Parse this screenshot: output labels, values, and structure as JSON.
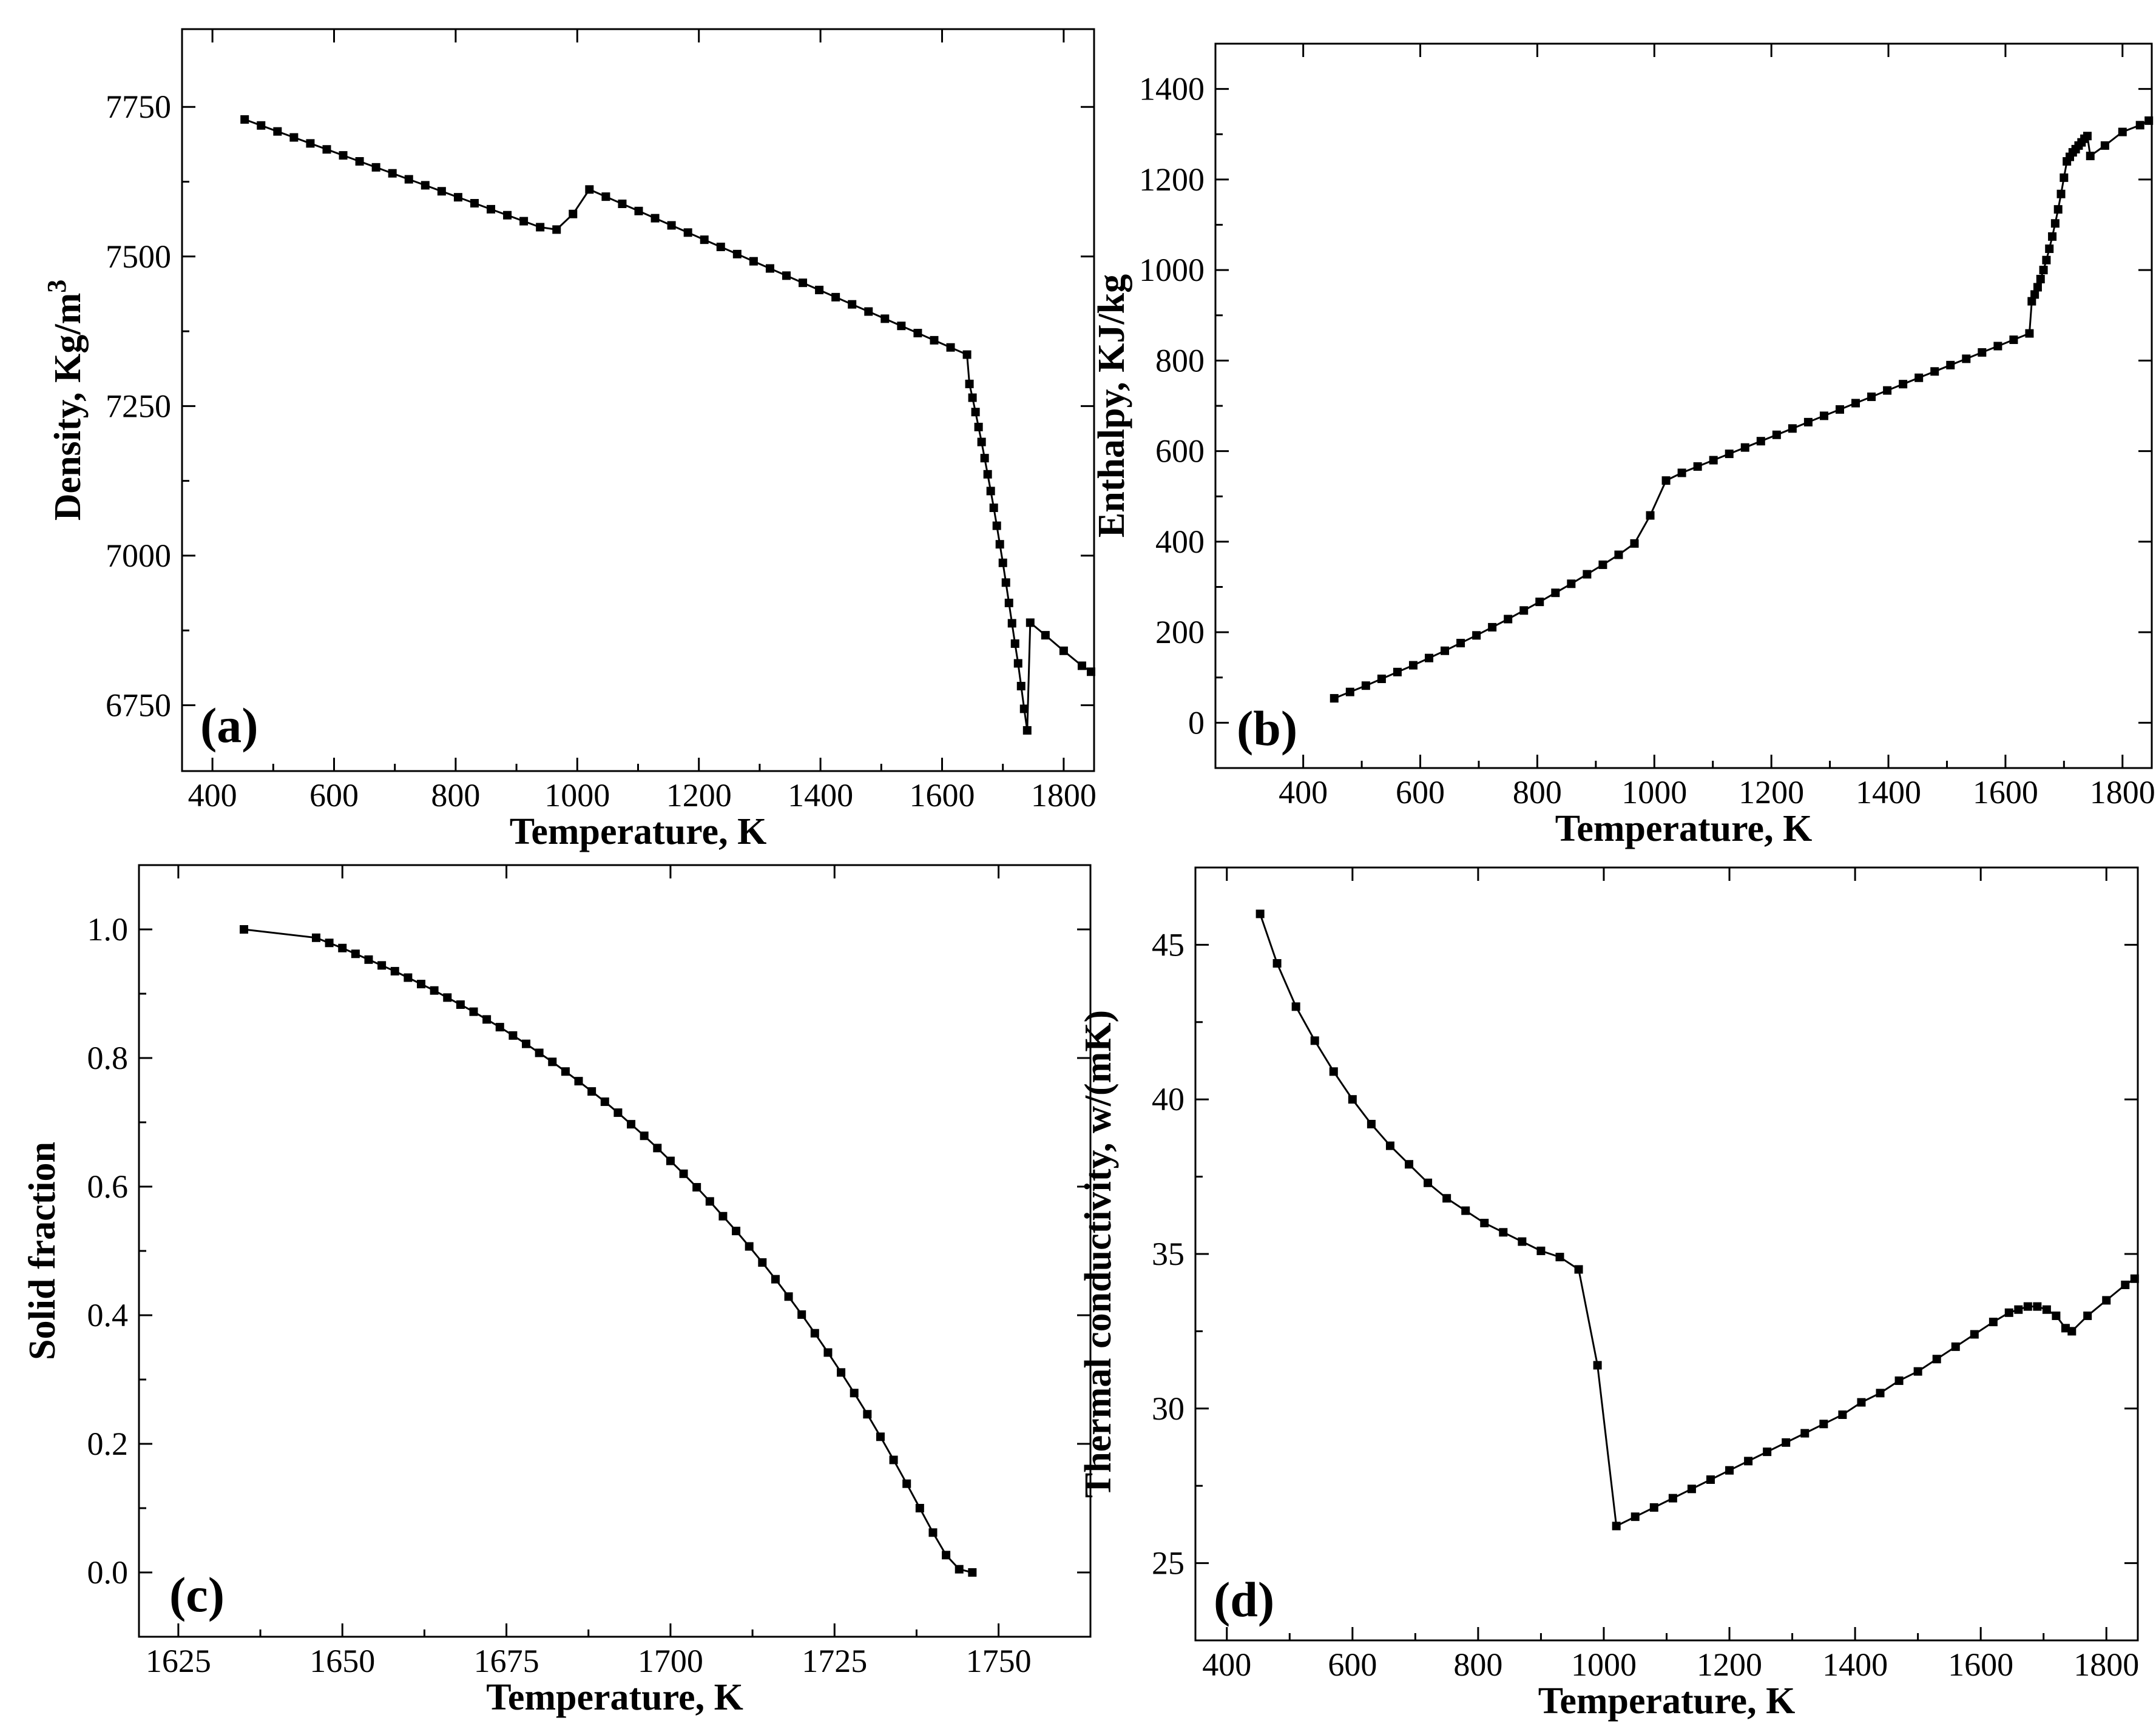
{
  "chart_data": [
    {
      "type": "line",
      "panel_label": "(a)",
      "xlabel": "Temperature, K",
      "ylabel": "Density, Kg/m",
      "ylabel_superscript": "3",
      "xlim": [
        350,
        1850
      ],
      "ylim": [
        6640,
        7880
      ],
      "xticks": [
        400,
        600,
        800,
        1000,
        1200,
        1400,
        1600,
        1800
      ],
      "yticks": [
        6750,
        7000,
        7250,
        7500,
        7750
      ],
      "series": [
        {
          "name": "Density",
          "x": [
            453,
            480,
            507,
            534,
            561,
            588,
            615,
            642,
            669,
            696,
            723,
            750,
            777,
            804,
            831,
            858,
            885,
            912,
            939,
            966,
            993,
            1020,
            1047,
            1074,
            1101,
            1128,
            1155,
            1182,
            1209,
            1236,
            1263,
            1290,
            1317,
            1344,
            1371,
            1398,
            1425,
            1452,
            1479,
            1506,
            1533,
            1560,
            1587,
            1614,
            1641,
            1645,
            1650,
            1655,
            1660,
            1665,
            1670,
            1675,
            1680,
            1685,
            1690,
            1695,
            1700,
            1705,
            1710,
            1715,
            1720,
            1725,
            1730,
            1735,
            1740,
            1745,
            1770,
            1800,
            1830,
            1845
          ],
          "y": [
            7729,
            7719,
            7709,
            7699,
            7689,
            7679,
            7669,
            7659,
            7649,
            7639,
            7629,
            7619,
            7609,
            7599,
            7589,
            7579,
            7569,
            7559,
            7549,
            7545,
            7571,
            7612,
            7600,
            7588,
            7576,
            7564,
            7552,
            7540,
            7528,
            7516,
            7504,
            7492,
            7480,
            7468,
            7456,
            7444,
            7432,
            7420,
            7408,
            7396,
            7384,
            7372,
            7360,
            7348,
            7336,
            7287,
            7264,
            7240,
            7215,
            7190,
            7163,
            7136,
            7108,
            7080,
            7050,
            7019,
            6988,
            6955,
            6921,
            6887,
            6853,
            6820,
            6782,
            6744,
            6708,
            6888,
            6867,
            6841,
            6816,
            6806
          ]
        }
      ]
    },
    {
      "type": "line",
      "panel_label": "(b)",
      "xlabel": "Temperature, K",
      "ylabel": "Enthalpy, KJ/kg",
      "xlim": [
        250,
        1850
      ],
      "ylim": [
        -100,
        1500
      ],
      "xticks": [
        400,
        600,
        800,
        1000,
        1200,
        1400,
        1600,
        1800
      ],
      "yticks": [
        0,
        200,
        400,
        600,
        800,
        1000,
        1200,
        1400
      ],
      "series": [
        {
          "name": "Enthalpy",
          "x": [
            453,
            480,
            507,
            534,
            561,
            588,
            615,
            642,
            669,
            696,
            723,
            750,
            777,
            804,
            831,
            858,
            885,
            912,
            939,
            966,
            993,
            1020,
            1047,
            1074,
            1101,
            1128,
            1155,
            1182,
            1209,
            1236,
            1263,
            1290,
            1317,
            1344,
            1371,
            1398,
            1425,
            1452,
            1479,
            1506,
            1533,
            1560,
            1587,
            1614,
            1641,
            1645,
            1650,
            1655,
            1660,
            1665,
            1670,
            1675,
            1680,
            1685,
            1690,
            1695,
            1700,
            1705,
            1710,
            1715,
            1720,
            1725,
            1730,
            1735,
            1740,
            1745,
            1770,
            1800,
            1830,
            1845
          ],
          "y": [
            54,
            68,
            82,
            97,
            112,
            127,
            143,
            159,
            176,
            193,
            211,
            229,
            248,
            267,
            287,
            307,
            328,
            349,
            371,
            396,
            458,
            535,
            552,
            566,
            580,
            594,
            608,
            622,
            636,
            650,
            664,
            678,
            692,
            706,
            720,
            734,
            748,
            762,
            776,
            790,
            804,
            818,
            832,
            846,
            860,
            931,
            946,
            962,
            980,
            1000,
            1022,
            1047,
            1074,
            1103,
            1134,
            1168,
            1204,
            1240,
            1250,
            1260,
            1267,
            1275,
            1282,
            1290,
            1296,
            1252,
            1275,
            1305,
            1320,
            1330
          ]
        }
      ]
    },
    {
      "type": "line",
      "panel_label": "(c)",
      "xlabel": "Temperature, K",
      "ylabel": "Solid fraction",
      "xlim": [
        1619,
        1764
      ],
      "ylim": [
        -0.1,
        1.1
      ],
      "xticks": [
        1625,
        1650,
        1675,
        1700,
        1725,
        1750
      ],
      "yticks": [
        0.0,
        0.2,
        0.4,
        0.6,
        0.8,
        1.0
      ],
      "series": [
        {
          "name": "Solid fraction",
          "x": [
            1635,
            1646,
            1648,
            1650,
            1652,
            1654,
            1656,
            1658,
            1660,
            1662,
            1664,
            1666,
            1668,
            1670,
            1672,
            1674,
            1676,
            1678,
            1680,
            1682,
            1684,
            1686,
            1688,
            1690,
            1692,
            1694,
            1696,
            1698,
            1700,
            1702,
            1704,
            1706,
            1708,
            1710,
            1712,
            1714,
            1716,
            1718,
            1720,
            1722,
            1724,
            1726,
            1728,
            1730,
            1732,
            1734,
            1736,
            1738,
            1740,
            1742,
            1744,
            1746
          ],
          "y": [
            1.0,
            0.987,
            0.979,
            0.971,
            0.962,
            0.953,
            0.944,
            0.935,
            0.925,
            0.915,
            0.905,
            0.894,
            0.883,
            0.872,
            0.86,
            0.848,
            0.835,
            0.822,
            0.808,
            0.794,
            0.779,
            0.764,
            0.748,
            0.732,
            0.715,
            0.697,
            0.679,
            0.66,
            0.64,
            0.62,
            0.599,
            0.577,
            0.554,
            0.531,
            0.507,
            0.482,
            0.456,
            0.429,
            0.401,
            0.372,
            0.342,
            0.311,
            0.279,
            0.246,
            0.211,
            0.175,
            0.138,
            0.1,
            0.062,
            0.027,
            0.005,
            0.0
          ]
        }
      ]
    },
    {
      "type": "line",
      "panel_label": "(d)",
      "xlabel": "Temperature, K",
      "ylabel": "Thermal conductivity, w/(mK)",
      "xlim": [
        350,
        1850
      ],
      "ylim": [
        22.5,
        47.5
      ],
      "xticks": [
        400,
        600,
        800,
        1000,
        1200,
        1400,
        1600,
        1800
      ],
      "yticks": [
        25,
        30,
        35,
        40,
        45
      ],
      "series": [
        {
          "name": "Thermal conductivity",
          "x": [
            453,
            480,
            510,
            540,
            570,
            600,
            630,
            660,
            690,
            720,
            750,
            780,
            810,
            840,
            870,
            900,
            930,
            960,
            990,
            1020,
            1050,
            1080,
            1110,
            1140,
            1170,
            1200,
            1230,
            1260,
            1290,
            1320,
            1350,
            1380,
            1410,
            1440,
            1470,
            1500,
            1530,
            1560,
            1590,
            1620,
            1645,
            1660,
            1675,
            1690,
            1705,
            1720,
            1735,
            1745,
            1770,
            1800,
            1830,
            1845
          ],
          "y": [
            46.0,
            44.4,
            43.0,
            41.9,
            40.9,
            40.0,
            39.2,
            38.5,
            37.9,
            37.3,
            36.8,
            36.4,
            36.0,
            35.7,
            35.4,
            35.1,
            34.9,
            34.5,
            31.4,
            26.2,
            26.5,
            26.8,
            27.1,
            27.4,
            27.7,
            28.0,
            28.3,
            28.6,
            28.9,
            29.2,
            29.5,
            29.8,
            30.2,
            30.5,
            30.9,
            31.2,
            31.6,
            32.0,
            32.4,
            32.8,
            33.1,
            33.2,
            33.3,
            33.3,
            33.2,
            33.0,
            32.6,
            32.5,
            33.0,
            33.5,
            34.0,
            34.2
          ]
        }
      ]
    }
  ]
}
